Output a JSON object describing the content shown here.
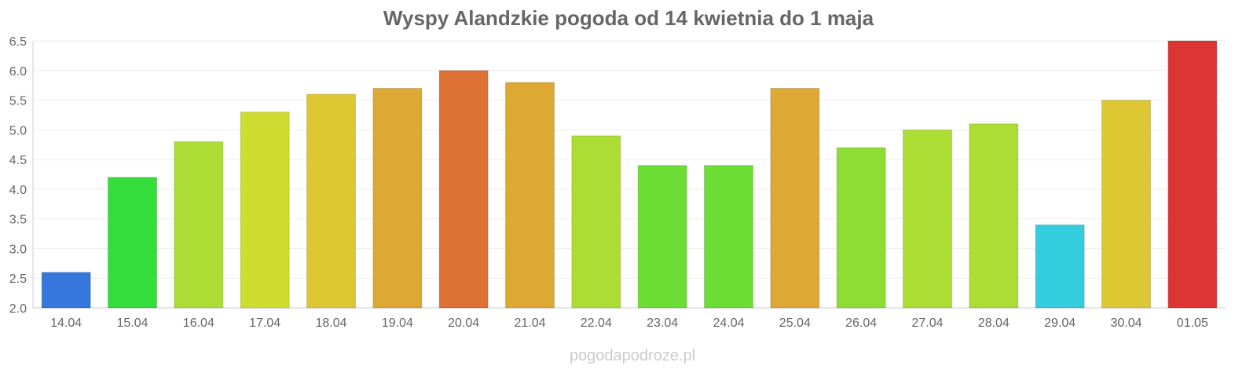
{
  "chart_data": {
    "type": "bar",
    "title": "Wyspy Alandzkie pogoda od 14 kwietnia do 1 maja",
    "xlabel": "",
    "ylabel": "",
    "ylim": [
      2.0,
      6.5
    ],
    "yticks": [
      "2.0",
      "2.5",
      "3.0",
      "3.5",
      "4.0",
      "4.5",
      "5.0",
      "5.5",
      "6.0",
      "6.5"
    ],
    "grid": true,
    "categories": [
      "14.04",
      "15.04",
      "16.04",
      "17.04",
      "18.04",
      "19.04",
      "20.04",
      "21.04",
      "22.04",
      "23.04",
      "24.04",
      "25.04",
      "26.04",
      "27.04",
      "28.04",
      "29.04",
      "30.04",
      "01.05"
    ],
    "values": [
      2.6,
      4.2,
      4.8,
      5.3,
      5.6,
      5.7,
      6.0,
      5.8,
      4.9,
      4.4,
      4.4,
      5.7,
      4.7,
      5.0,
      5.1,
      3.4,
      5.5,
      6.5
    ],
    "colors": [
      "#3577dd",
      "#34dd3a",
      "#acdd34",
      "#cfdd31",
      "#ddc834",
      "#dda834",
      "#dd7034",
      "#dda834",
      "#acdd34",
      "#6bdd34",
      "#6bdd34",
      "#dda834",
      "#8ddd34",
      "#acdd34",
      "#acdd34",
      "#34cddd",
      "#ddc834",
      "#dd3434"
    ]
  },
  "watermark": "pogodapodroze.pl"
}
